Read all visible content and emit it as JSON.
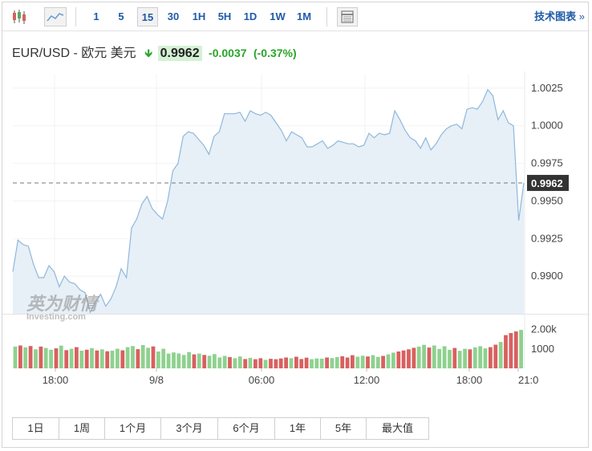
{
  "toolbar": {
    "intervals": [
      "1",
      "5",
      "15",
      "30",
      "1H",
      "5H",
      "1D",
      "1W",
      "1M"
    ],
    "active_interval": "15",
    "tech_chart_label": "技术图表",
    "tech_chart_arrow": "»"
  },
  "quote": {
    "symbol": "EUR/USD - 欧元 美元",
    "price": "0.9962",
    "change": "-0.0037",
    "change_pct": "(-0.37%)",
    "down_color": "#2aa52a"
  },
  "watermark": {
    "brand": "英为财情",
    "sub": "Investing.com"
  },
  "periods": [
    "1日",
    "1周",
    "1个月",
    "3个月",
    "6个月",
    "1年",
    "5年",
    "最大值"
  ],
  "chart_data": {
    "type": "area",
    "y_ticks": [
      "1.0025",
      "1.0000",
      "0.9975",
      "0.9950",
      "0.9925",
      "0.9900"
    ],
    "ylim": [
      0.9875,
      1.0034
    ],
    "x_ticks": [
      "18:00",
      "9/8",
      "06:00",
      "12:00",
      "18:00",
      "21:0"
    ],
    "current_price": 0.9962,
    "current_price_label": "0.9962",
    "line_color": "#8fb8dc",
    "fill_color": "#e7eff7",
    "values": [
      0.9903,
      0.9924,
      0.9921,
      0.992,
      0.9908,
      0.9899,
      0.9899,
      0.9907,
      0.9903,
      0.9893,
      0.99,
      0.9896,
      0.9895,
      0.9891,
      0.9889,
      0.9876,
      0.9883,
      0.9888,
      0.988,
      0.9885,
      0.9893,
      0.9905,
      0.9899,
      0.9932,
      0.9938,
      0.9948,
      0.9953,
      0.9945,
      0.9941,
      0.9938,
      0.995,
      0.997,
      0.9975,
      0.9993,
      0.9996,
      0.9995,
      0.9991,
      0.9987,
      0.9981,
      0.9993,
      0.9996,
      1.0008,
      1.0008,
      1.0008,
      1.0009,
      1.0003,
      1.001,
      1.0008,
      1.0007,
      1.0009,
      1.0007,
      1.0002,
      0.9997,
      0.999,
      0.9996,
      0.9994,
      0.9992,
      0.9986,
      0.9986,
      0.9988,
      0.999,
      0.9985,
      0.9987,
      0.999,
      0.9989,
      0.9988,
      0.9988,
      0.9986,
      0.9987,
      0.9995,
      0.9992,
      0.9995,
      0.9994,
      0.9995,
      1.001,
      1.0004,
      0.9997,
      0.9992,
      0.999,
      0.9985,
      0.9992,
      0.9984,
      0.9988,
      0.9994,
      0.9998,
      1.0,
      1.0001,
      0.9998,
      1.0011,
      1.0012,
      1.0011,
      1.0016,
      1.0024,
      1.002,
      1.0004,
      1.001,
      1.0002,
      1.0,
      0.9937,
      0.9962
    ],
    "volumes": [
      1120,
      1180,
      1080,
      1150,
      980,
      1120,
      1050,
      960,
      1030,
      1170,
      940,
      1010,
      1090,
      910,
      960,
      1040,
      920,
      980,
      880,
      910,
      1010,
      930,
      1090,
      1150,
      990,
      1200,
      1060,
      1130,
      870,
      1010,
      760,
      820,
      770,
      690,
      840,
      720,
      760,
      690,
      650,
      730,
      560,
      640,
      580,
      520,
      610,
      480,
      540,
      470,
      520,
      440,
      490,
      470,
      510,
      560,
      520,
      600,
      480,
      550,
      470,
      510,
      500,
      560,
      530,
      580,
      620,
      560,
      680,
      600,
      650,
      610,
      680,
      590,
      640,
      720,
      810,
      870,
      920,
      980,
      1060,
      1120,
      1210,
      1070,
      1180,
      1000,
      1140,
      950,
      1050,
      900,
      1010,
      980,
      1080,
      1140,
      1030,
      1090,
      1220,
      1360,
      1710,
      1820,
      1900,
      1980
    ],
    "volume_up": [
      true,
      false,
      true,
      false,
      true,
      false,
      true,
      true,
      false,
      true,
      false,
      true,
      false,
      true,
      false,
      true,
      false,
      true,
      false,
      true,
      true,
      false,
      true,
      true,
      false,
      true,
      true,
      false,
      true,
      true,
      true,
      true,
      true,
      true,
      true,
      false,
      true,
      false,
      true,
      true,
      true,
      true,
      false,
      true,
      true,
      false,
      true,
      false,
      false,
      true,
      false,
      false,
      false,
      false,
      true,
      false,
      false,
      false,
      true,
      true,
      true,
      false,
      true,
      true,
      false,
      false,
      false,
      true,
      true,
      false,
      true,
      true,
      false,
      true,
      true,
      false,
      false,
      false,
      false,
      true,
      true,
      false,
      true,
      true,
      true,
      true,
      false,
      true,
      true,
      false,
      true,
      true,
      true,
      false,
      false,
      true,
      false,
      false,
      false,
      true
    ],
    "volume_ticks": [
      "2.00k",
      "1000"
    ],
    "volume_max": 2150,
    "volume_up_color": "#8fd18f",
    "volume_down_color": "#d86060"
  }
}
